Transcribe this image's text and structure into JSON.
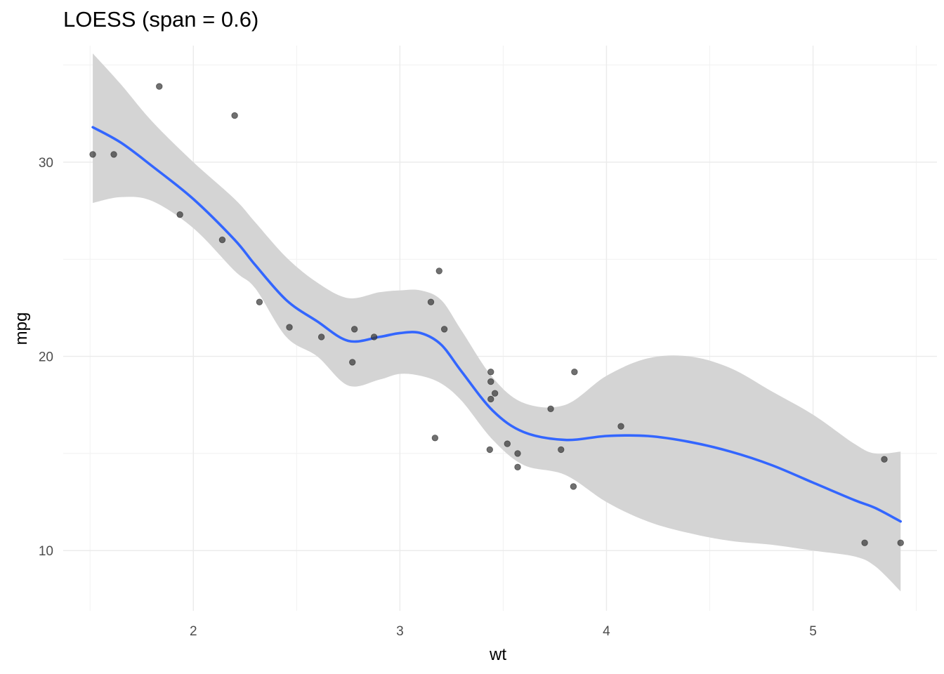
{
  "chart_data": {
    "type": "scatter",
    "title": "LOESS (span = 0.6)",
    "xlabel": "wt",
    "ylabel": "mpg",
    "xlim": [
      1.37,
      5.6
    ],
    "ylim": [
      6.9,
      36.0
    ],
    "x_major_ticks": [
      2,
      3,
      4,
      5
    ],
    "y_major_ticks": [
      10,
      20,
      30
    ],
    "grid": true,
    "colors": {
      "points": "#333333",
      "smooth_line": "#3366FF",
      "ribbon": "#d4d4d4",
      "grid": "#ebebeb"
    },
    "points": [
      {
        "x": 2.62,
        "y": 21.0
      },
      {
        "x": 2.875,
        "y": 21.0
      },
      {
        "x": 2.32,
        "y": 22.8
      },
      {
        "x": 3.215,
        "y": 21.4
      },
      {
        "x": 3.44,
        "y": 18.7
      },
      {
        "x": 3.46,
        "y": 18.1
      },
      {
        "x": 3.57,
        "y": 14.3
      },
      {
        "x": 3.19,
        "y": 24.4
      },
      {
        "x": 3.15,
        "y": 22.8
      },
      {
        "x": 3.44,
        "y": 19.2
      },
      {
        "x": 3.44,
        "y": 17.8
      },
      {
        "x": 4.07,
        "y": 16.4
      },
      {
        "x": 3.73,
        "y": 17.3
      },
      {
        "x": 3.78,
        "y": 15.2
      },
      {
        "x": 5.25,
        "y": 10.4
      },
      {
        "x": 5.424,
        "y": 10.4
      },
      {
        "x": 5.345,
        "y": 14.7
      },
      {
        "x": 2.2,
        "y": 32.4
      },
      {
        "x": 1.615,
        "y": 30.4
      },
      {
        "x": 1.835,
        "y": 33.9
      },
      {
        "x": 2.465,
        "y": 21.5
      },
      {
        "x": 3.52,
        "y": 15.5
      },
      {
        "x": 3.435,
        "y": 15.2
      },
      {
        "x": 3.84,
        "y": 13.3
      },
      {
        "x": 3.845,
        "y": 19.2
      },
      {
        "x": 1.935,
        "y": 27.3
      },
      {
        "x": 2.14,
        "y": 26.0
      },
      {
        "x": 1.513,
        "y": 30.4
      },
      {
        "x": 3.17,
        "y": 15.8
      },
      {
        "x": 2.77,
        "y": 19.7
      },
      {
        "x": 3.57,
        "y": 15.0
      },
      {
        "x": 2.78,
        "y": 21.4
      }
    ],
    "smooth": [
      {
        "x": 1.513,
        "y": 31.8,
        "ymin": 27.9,
        "ymax": 35.6
      },
      {
        "x": 1.65,
        "y": 31.0,
        "ymin": 28.2,
        "ymax": 34.0
      },
      {
        "x": 1.8,
        "y": 29.8,
        "ymin": 28.0,
        "ymax": 32.1
      },
      {
        "x": 2.0,
        "y": 28.1,
        "ymin": 26.6,
        "ymax": 30.0
      },
      {
        "x": 2.2,
        "y": 26.0,
        "ymin": 24.4,
        "ymax": 28.1
      },
      {
        "x": 2.3,
        "y": 24.7,
        "ymin": 23.5,
        "ymax": 26.9
      },
      {
        "x": 2.45,
        "y": 22.9,
        "ymin": 21.0,
        "ymax": 25.1
      },
      {
        "x": 2.6,
        "y": 21.8,
        "ymin": 20.0,
        "ymax": 23.8
      },
      {
        "x": 2.75,
        "y": 20.8,
        "ymin": 18.5,
        "ymax": 23.0
      },
      {
        "x": 2.9,
        "y": 21.0,
        "ymin": 18.8,
        "ymax": 23.3
      },
      {
        "x": 3.0,
        "y": 21.2,
        "ymin": 19.1,
        "ymax": 23.4
      },
      {
        "x": 3.1,
        "y": 21.2,
        "ymin": 19.0,
        "ymax": 23.4
      },
      {
        "x": 3.2,
        "y": 20.6,
        "ymin": 18.6,
        "ymax": 22.9
      },
      {
        "x": 3.3,
        "y": 19.2,
        "ymin": 17.7,
        "ymax": 21.3
      },
      {
        "x": 3.45,
        "y": 17.2,
        "ymin": 15.7,
        "ymax": 18.9
      },
      {
        "x": 3.6,
        "y": 16.1,
        "ymin": 14.4,
        "ymax": 17.6
      },
      {
        "x": 3.8,
        "y": 15.7,
        "ymin": 13.9,
        "ymax": 17.5
      },
      {
        "x": 4.0,
        "y": 15.9,
        "ymin": 12.5,
        "ymax": 19.0
      },
      {
        "x": 4.2,
        "y": 15.9,
        "ymin": 11.5,
        "ymax": 19.9
      },
      {
        "x": 4.4,
        "y": 15.6,
        "ymin": 10.9,
        "ymax": 20.0
      },
      {
        "x": 4.6,
        "y": 15.1,
        "ymin": 10.5,
        "ymax": 19.4
      },
      {
        "x": 4.8,
        "y": 14.4,
        "ymin": 10.3,
        "ymax": 18.2
      },
      {
        "x": 5.0,
        "y": 13.5,
        "ymin": 10.0,
        "ymax": 17.0
      },
      {
        "x": 5.2,
        "y": 12.6,
        "ymin": 9.7,
        "ymax": 15.5
      },
      {
        "x": 5.3,
        "y": 12.2,
        "ymin": 9.2,
        "ymax": 15.0
      },
      {
        "x": 5.424,
        "y": 11.5,
        "ymin": 7.9,
        "ymax": 15.1
      }
    ]
  }
}
